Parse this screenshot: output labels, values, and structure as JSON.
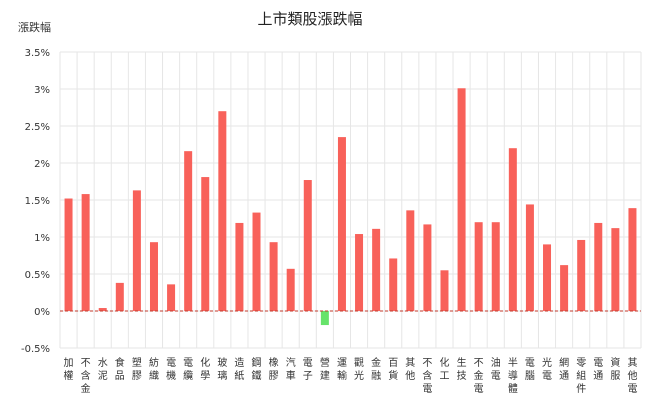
{
  "chart_data": {
    "type": "bar",
    "title": "上市類股漲跌幅",
    "ylabel": "漲跌幅",
    "xlabel": "",
    "ylim": [
      -0.5,
      3.5
    ],
    "yticks": [
      -0.5,
      0,
      0.5,
      1,
      1.5,
      2,
      2.5,
      3,
      3.5
    ],
    "ytick_labels": [
      "-0.5%",
      "0%",
      "0.5%",
      "1%",
      "1.5%",
      "2%",
      "2.5%",
      "3%",
      "3.5%"
    ],
    "grid": true,
    "legend": "none",
    "categories": [
      "加權",
      "不含金",
      "水泥",
      "食品",
      "塑膠",
      "紡織",
      "電機",
      "電纜",
      "化學",
      "玻璃",
      "造紙",
      "鋼鐵",
      "橡膠",
      "汽車",
      "電子",
      "營建",
      "運輸",
      "觀光",
      "金融",
      "百貨",
      "其他",
      "不含電",
      "化工",
      "生技",
      "不金電",
      "油電",
      "半導體",
      "電腦",
      "光電",
      "網通",
      "零組件",
      "電通",
      "資服",
      "其他電"
    ],
    "values": [
      1.52,
      1.58,
      0.04,
      0.38,
      1.63,
      0.93,
      0.36,
      2.16,
      1.81,
      2.7,
      1.19,
      1.33,
      0.93,
      0.57,
      1.77,
      -0.19,
      2.35,
      1.04,
      1.11,
      0.71,
      1.36,
      1.17,
      0.55,
      3.01,
      1.2,
      1.2,
      2.2,
      1.44,
      0.9,
      0.62,
      0.96,
      1.19,
      1.12,
      1.39
    ],
    "colors": {
      "up": "#f8615a",
      "down": "#66e36a",
      "zero_line": "#c0392b",
      "grid": "#e6e6e6"
    }
  }
}
